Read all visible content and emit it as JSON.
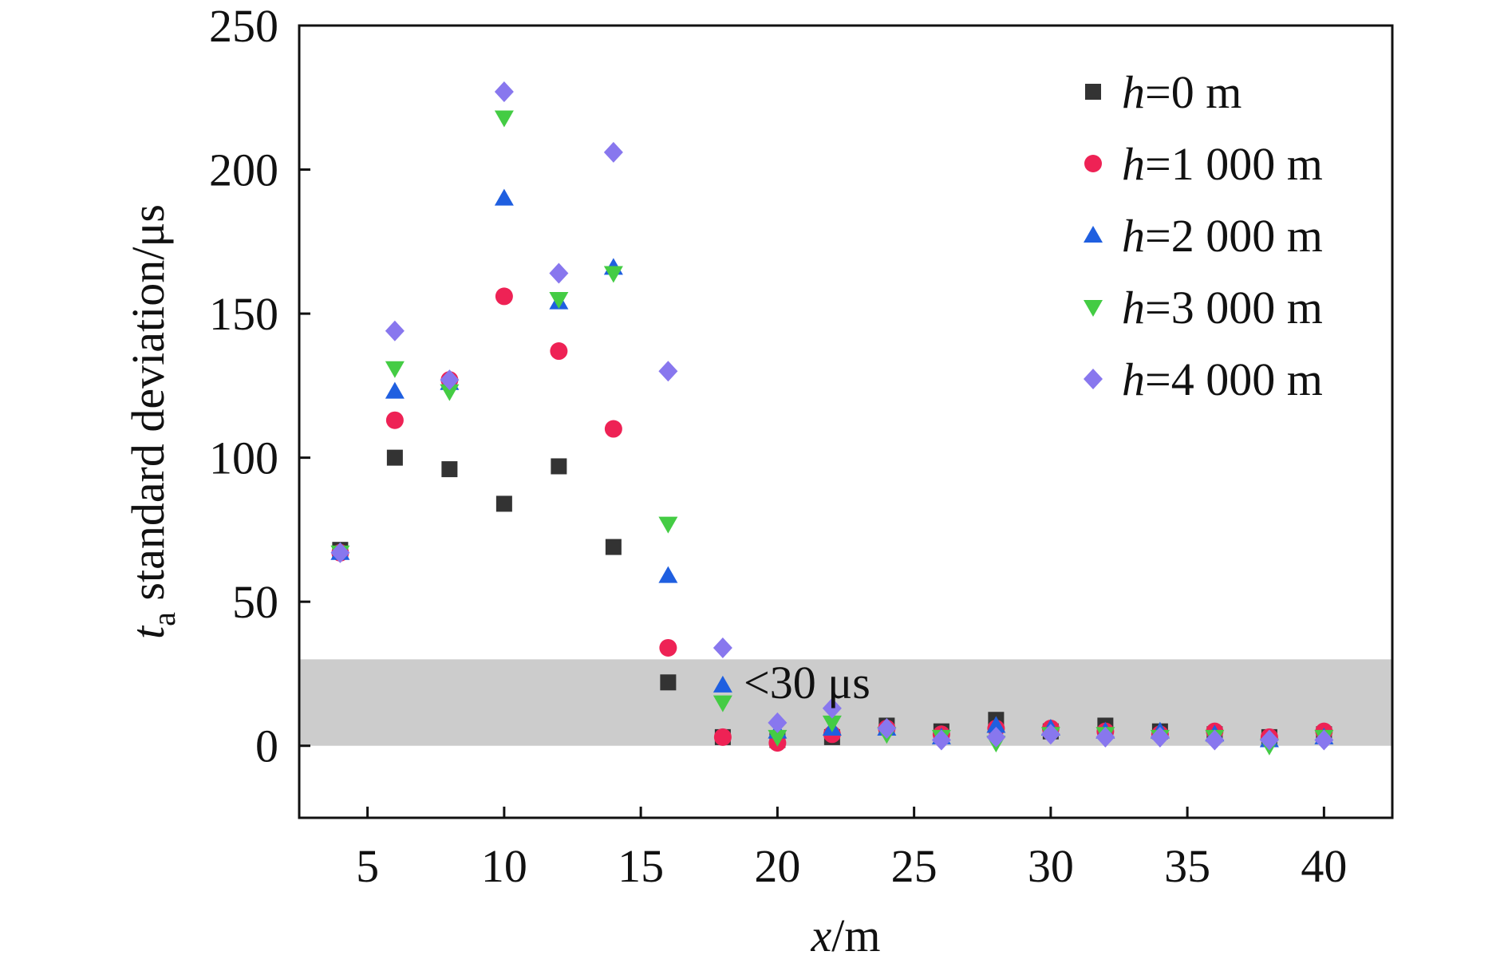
{
  "chart_data": {
    "type": "scatter",
    "xlabel": {
      "var": "x",
      "unit": "/m"
    },
    "ylabel": {
      "var": "t",
      "sub": "a",
      "rest": " standard deviation/μs"
    },
    "xlim": [
      2.5,
      42.5
    ],
    "ylim": [
      -25,
      250
    ],
    "xticks": [
      5,
      10,
      15,
      20,
      25,
      30,
      35,
      40
    ],
    "yticks": [
      0,
      50,
      100,
      150,
      200,
      250
    ],
    "grid": false,
    "legend_position": "top-right",
    "band": {
      "y0": 0,
      "y1": 30,
      "color": "#cccccc",
      "label": "<30 μs"
    },
    "series": [
      {
        "name": "h=0 m",
        "name_var": "h",
        "name_rest": "=0 m",
        "marker": "square",
        "color": "#333333",
        "points": [
          [
            4,
            68
          ],
          [
            6,
            100
          ],
          [
            8,
            96
          ],
          [
            10,
            84
          ],
          [
            12,
            97
          ],
          [
            14,
            69
          ],
          [
            16,
            22
          ],
          [
            18,
            3
          ],
          [
            20,
            2
          ],
          [
            22,
            3
          ],
          [
            24,
            7
          ],
          [
            26,
            5
          ],
          [
            28,
            9
          ],
          [
            30,
            5
          ],
          [
            32,
            7
          ],
          [
            34,
            5
          ],
          [
            36,
            4
          ],
          [
            38,
            3
          ],
          [
            40,
            4
          ]
        ]
      },
      {
        "name": "h=1 000 m",
        "name_var": "h",
        "name_rest": "=1 000 m",
        "marker": "circle",
        "color": "#ee2255",
        "points": [
          [
            4,
            67
          ],
          [
            6,
            113
          ],
          [
            8,
            127
          ],
          [
            10,
            156
          ],
          [
            12,
            137
          ],
          [
            14,
            110
          ],
          [
            16,
            34
          ],
          [
            18,
            3
          ],
          [
            20,
            1
          ],
          [
            22,
            4
          ],
          [
            24,
            6
          ],
          [
            26,
            4
          ],
          [
            28,
            6
          ],
          [
            30,
            6
          ],
          [
            32,
            5
          ],
          [
            34,
            4
          ],
          [
            36,
            5
          ],
          [
            38,
            3
          ],
          [
            40,
            5
          ]
        ]
      },
      {
        "name": "h=2 000 m",
        "name_var": "h",
        "name_rest": "=2 000 m",
        "marker": "triangle-up",
        "color": "#1f5fe0",
        "points": [
          [
            4,
            67
          ],
          [
            6,
            123
          ],
          [
            8,
            126
          ],
          [
            10,
            190
          ],
          [
            12,
            154
          ],
          [
            14,
            166
          ],
          [
            16,
            59
          ],
          [
            18,
            21
          ],
          [
            20,
            5
          ],
          [
            22,
            6
          ],
          [
            24,
            6
          ],
          [
            26,
            3
          ],
          [
            28,
            7
          ],
          [
            30,
            6
          ],
          [
            32,
            5
          ],
          [
            34,
            5
          ],
          [
            36,
            4
          ],
          [
            38,
            2
          ],
          [
            40,
            3
          ]
        ]
      },
      {
        "name": "h=3 000 m",
        "name_var": "h",
        "name_rest": "=3 000 m",
        "marker": "triangle-down",
        "color": "#44cc44",
        "points": [
          [
            4,
            67
          ],
          [
            6,
            131
          ],
          [
            8,
            123
          ],
          [
            10,
            218
          ],
          [
            12,
            155
          ],
          [
            14,
            164
          ],
          [
            16,
            77
          ],
          [
            18,
            15
          ],
          [
            20,
            3
          ],
          [
            22,
            8
          ],
          [
            24,
            4
          ],
          [
            26,
            3
          ],
          [
            28,
            1
          ],
          [
            30,
            4
          ],
          [
            32,
            4
          ],
          [
            34,
            3
          ],
          [
            36,
            3
          ],
          [
            38,
            0
          ],
          [
            40,
            3
          ]
        ]
      },
      {
        "name": "h=4 000 m",
        "name_var": "h",
        "name_rest": "=4 000 m",
        "marker": "diamond",
        "color": "#8877ee",
        "points": [
          [
            4,
            67
          ],
          [
            6,
            144
          ],
          [
            8,
            127
          ],
          [
            10,
            227
          ],
          [
            12,
            164
          ],
          [
            14,
            206
          ],
          [
            16,
            130
          ],
          [
            18,
            34
          ],
          [
            20,
            8
          ],
          [
            22,
            13
          ],
          [
            24,
            6
          ],
          [
            26,
            2
          ],
          [
            28,
            3
          ],
          [
            30,
            4
          ],
          [
            32,
            3
          ],
          [
            34,
            3
          ],
          [
            36,
            2
          ],
          [
            38,
            2
          ],
          [
            40,
            2
          ]
        ]
      }
    ]
  }
}
